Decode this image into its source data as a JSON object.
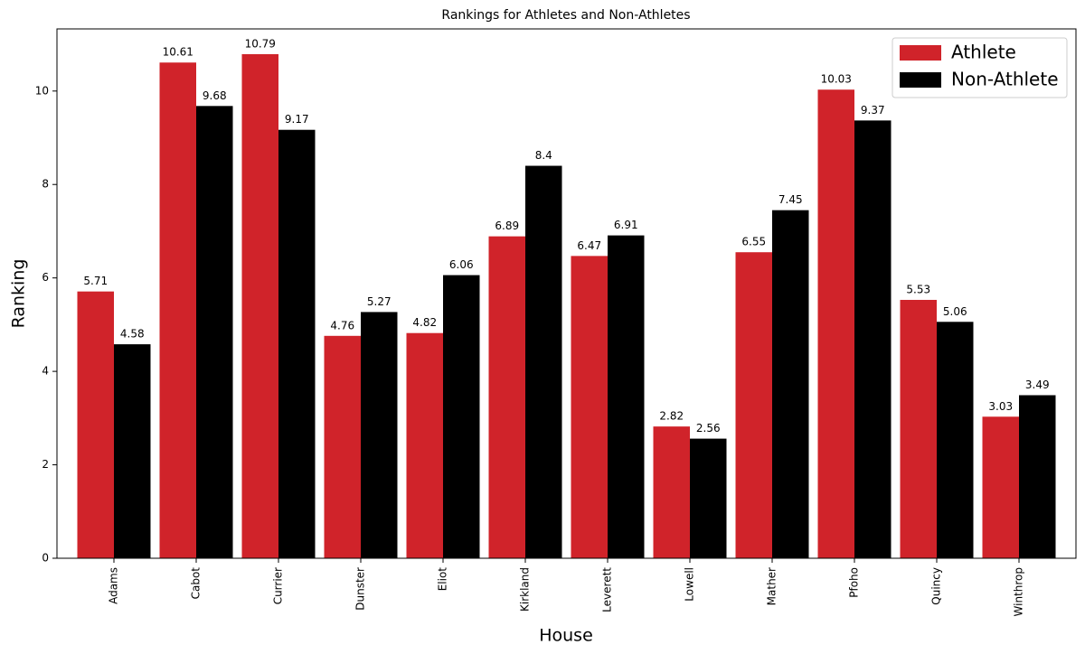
{
  "chart_data": {
    "type": "bar",
    "title": "Rankings for Athletes and Non-Athletes",
    "x_label": "House",
    "y_label": "Ranking",
    "categories": [
      "Adams",
      "Cabot",
      "Currier",
      "Dunster",
      "Eliot",
      "Kirkland",
      "Leverett",
      "Lowell",
      "Mather",
      "Pfoho",
      "Quincy",
      "Winthrop"
    ],
    "series": [
      {
        "name": "Athlete",
        "color": "#d0232a",
        "values": [
          5.71,
          10.61,
          10.79,
          4.76,
          4.82,
          6.89,
          6.47,
          2.82,
          6.55,
          10.03,
          5.53,
          3.03
        ]
      },
      {
        "name": "Non-Athlete",
        "color": "#000000",
        "values": [
          4.58,
          9.68,
          9.17,
          5.27,
          6.06,
          8.4,
          6.91,
          2.56,
          7.45,
          9.37,
          5.06,
          3.49
        ]
      }
    ],
    "ylim": [
      0,
      11.33
    ],
    "yticks": [
      0,
      2,
      4,
      6,
      8,
      10
    ],
    "grid": false,
    "legend": "upper right"
  }
}
